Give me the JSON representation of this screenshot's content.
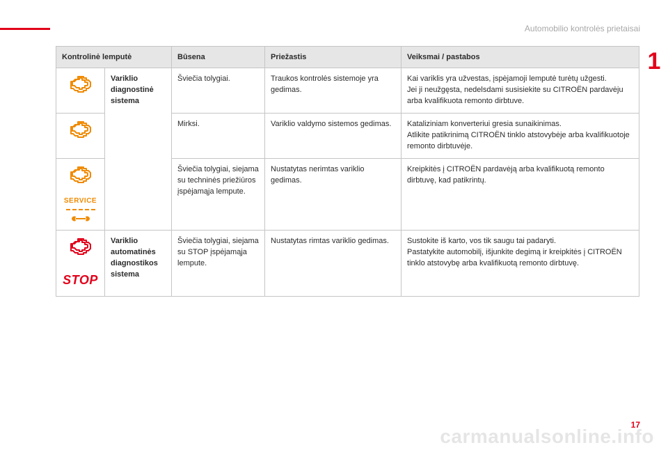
{
  "section_title": "Automobilio kontrolės prietaisai",
  "chapter_number": "1",
  "page_number": "17",
  "watermark": "carmanualsonline.info",
  "colors": {
    "accent_red": "#e2001a",
    "engine_orange": "#f08a00",
    "engine_red": "#e2001a",
    "header_bg": "#e6e6e6",
    "border": "#c5c5c5",
    "text_muted": "#a8a8a8"
  },
  "table": {
    "headers": {
      "lamp": "Kontrolinė lemputė",
      "state": "Būsena",
      "cause": "Priežastis",
      "action": "Veiksmai / pastabos"
    },
    "group1_name": "Variklio diagnostinė sistema",
    "group2_name": "Variklio automatinės diagnostikos sistema",
    "rows": [
      {
        "state": "Šviečia tolygiai.",
        "cause": "Traukos kontrolės sistemoje yra gedimas.",
        "action": "Kai variklis yra užvestas, įspėjamoji lemputė turėtų užgesti.\nJei ji neužgęsta, nedelsdami susisiekite su CITROËN pardavėju arba kvalifikuota remonto dirbtuve."
      },
      {
        "state": "Mirksi.",
        "cause": "Variklio valdymo sistemos gedimas.",
        "action": "Kataliziniam konverteriui gresia sunaikinimas.\nAtlikite patikrinimą CITROËN tinklo atstovybėje arba kvalifikuotoje remonto dirbtuvėje."
      },
      {
        "state": "Šviečia tolygiai, siejama su techninės priežiūros įspėjamąja lempute.",
        "cause": "Nustatytas nerimtas variklio gedimas.",
        "action": "Kreipkitės į CITROËN pardavėją arba kvalifikuotą remonto dirbtuvę, kad patikrintų."
      },
      {
        "state": "Šviečia tolygiai, siejama su STOP įspėjamąja lempute.",
        "cause": "Nustatytas rimtas variklio gedimas.",
        "action": "Sustokite iš karto, vos tik saugu tai padaryti.\nPastatykite automobilį, išjunkite degimą ir kreipkitės į CITROËN tinklo atstovybę arba kvalifikuotą remonto dirbtuvę."
      }
    ],
    "service_label": "SERVICE",
    "stop_label": "STOP"
  }
}
